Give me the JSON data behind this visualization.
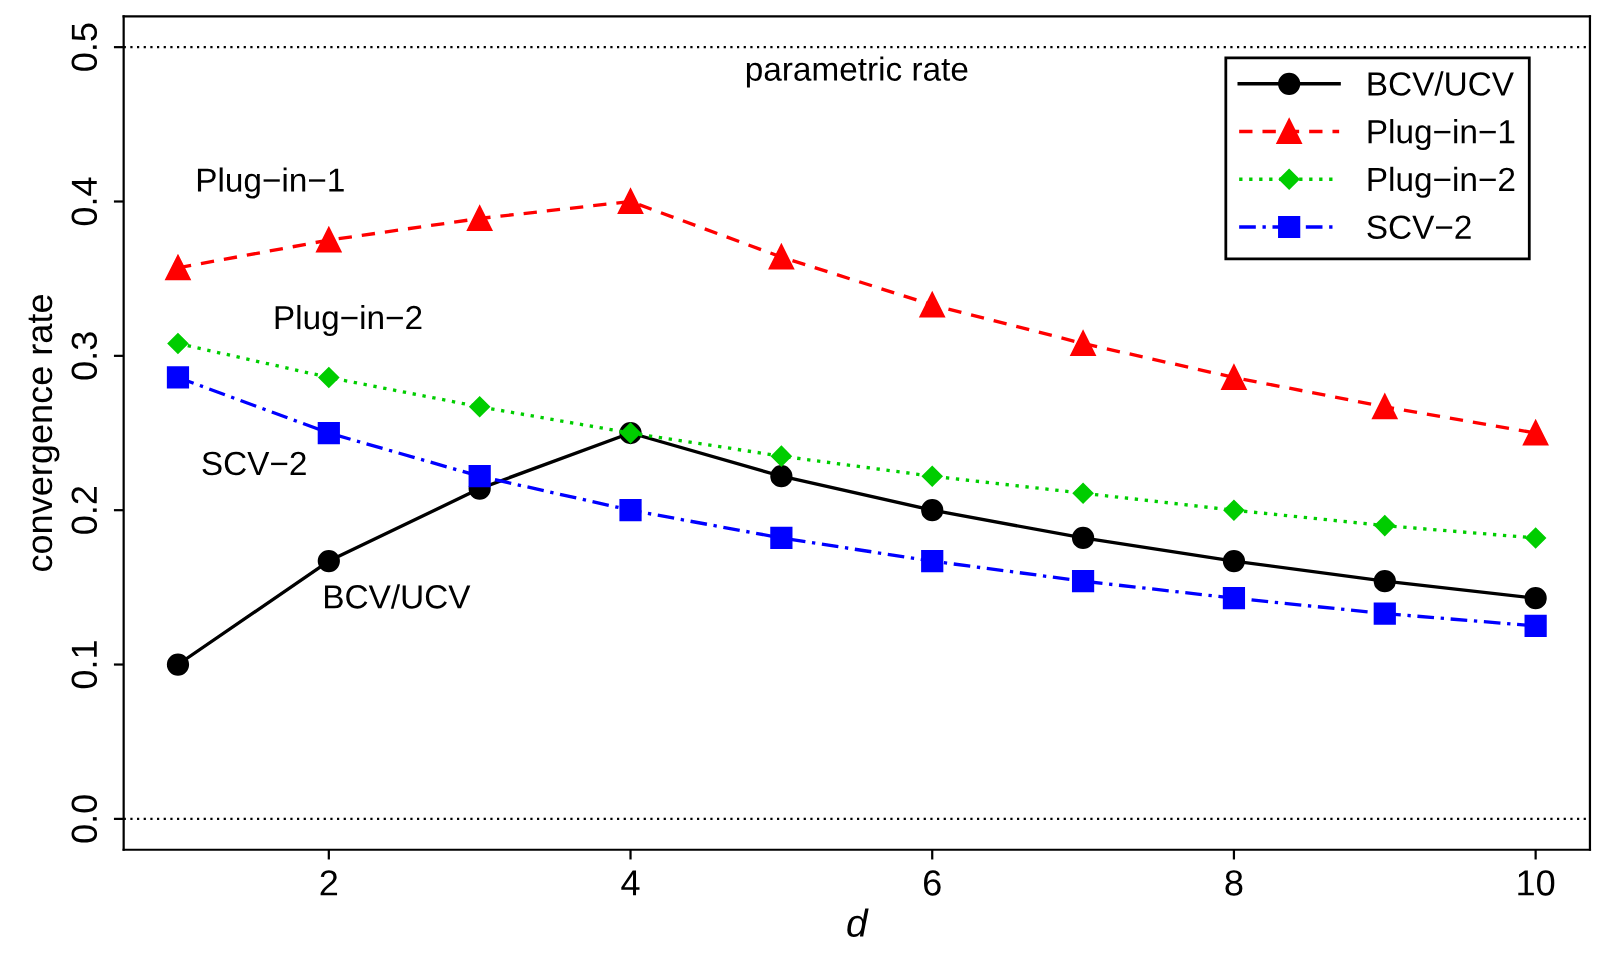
{
  "chart_data": {
    "type": "line",
    "xlabel": "d",
    "ylabel": "convergence rate",
    "x": [
      1,
      2,
      3,
      4,
      5,
      6,
      7,
      8,
      9,
      10
    ],
    "series": [
      {
        "name": "BCV/UCV",
        "color": "#000000",
        "values": [
          0.1,
          0.167,
          0.214,
          0.25,
          0.222,
          0.2,
          0.182,
          0.167,
          0.154,
          0.143
        ],
        "marker": "circle",
        "line_style": "solid"
      },
      {
        "name": "Plug−in−1",
        "color": "#ff0000",
        "values": [
          0.357,
          0.375,
          0.389,
          0.4,
          0.364,
          0.333,
          0.308,
          0.286,
          0.267,
          0.25
        ],
        "marker": "triangle",
        "line_style": "dashed"
      },
      {
        "name": "Plug−in−2",
        "color": "#00cd00",
        "values": [
          0.308,
          0.286,
          0.267,
          0.25,
          0.235,
          0.222,
          0.211,
          0.2,
          0.19,
          0.182
        ],
        "marker": "diamond",
        "line_style": "dotted"
      },
      {
        "name": "SCV−2",
        "color": "#0000ff",
        "values": [
          0.286,
          0.25,
          0.222,
          0.2,
          0.182,
          0.167,
          0.154,
          0.143,
          0.133,
          0.125
        ],
        "marker": "square",
        "line_style": "dashdot"
      }
    ],
    "xlim": [
      0.64,
      10.36
    ],
    "xticks": [
      2,
      4,
      6,
      8,
      10
    ],
    "ylim": [
      -0.02,
      0.52
    ],
    "yticks": [
      {
        "value": 0,
        "label": "0.0"
      },
      {
        "value": 0.1,
        "label": "0.1"
      },
      {
        "value": 0.2,
        "label": "0.2"
      },
      {
        "value": 0.3,
        "label": "0.3"
      },
      {
        "value": 0.4,
        "label": "0.4"
      },
      {
        "value": 0.5,
        "label": "0.5"
      }
    ],
    "ref_lines": [
      {
        "axis": "y",
        "value": 0.5,
        "label": "parametric rate",
        "color": "#000000",
        "line_style": "dotted"
      },
      {
        "axis": "y",
        "value": 0,
        "color": "#000000",
        "line_style": "dotted"
      }
    ],
    "annotations": [
      "Plug−in−1",
      "Plug−in−2",
      "SCV−2",
      "BCV/UCV"
    ],
    "grid": false,
    "legend": "top right"
  }
}
